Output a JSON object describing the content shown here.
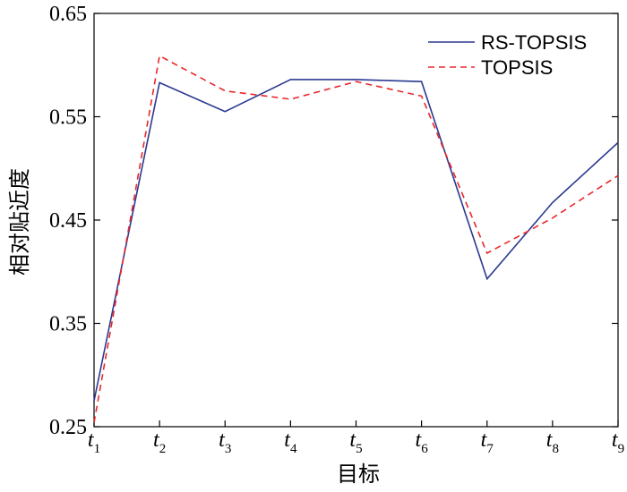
{
  "chart_data": {
    "type": "line",
    "title": "",
    "xlabel": "目标",
    "ylabel": "相对贴近度",
    "categories": [
      {
        "main": "t",
        "sub": "1"
      },
      {
        "main": "t",
        "sub": "2"
      },
      {
        "main": "t",
        "sub": "3"
      },
      {
        "main": "t",
        "sub": "4"
      },
      {
        "main": "t",
        "sub": "5"
      },
      {
        "main": "t",
        "sub": "6"
      },
      {
        "main": "t",
        "sub": "7"
      },
      {
        "main": "t",
        "sub": "8"
      },
      {
        "main": "t",
        "sub": "9"
      }
    ],
    "ylim": [
      0.25,
      0.65
    ],
    "yticks": [
      "0.25",
      "0.35",
      "0.45",
      "0.55",
      "0.65"
    ],
    "grid": false,
    "legend_position": "top-right",
    "series": [
      {
        "name": "RS-TOPSIS",
        "color": "#2b3990",
        "style": "solid",
        "values": [
          0.275,
          0.583,
          0.555,
          0.586,
          0.586,
          0.584,
          0.393,
          0.467,
          0.525
        ]
      },
      {
        "name": "TOPSIS",
        "color": "#e8282b",
        "style": "dashed",
        "values": [
          0.254,
          0.609,
          0.575,
          0.567,
          0.584,
          0.57,
          0.418,
          0.452,
          0.493
        ]
      }
    ]
  }
}
